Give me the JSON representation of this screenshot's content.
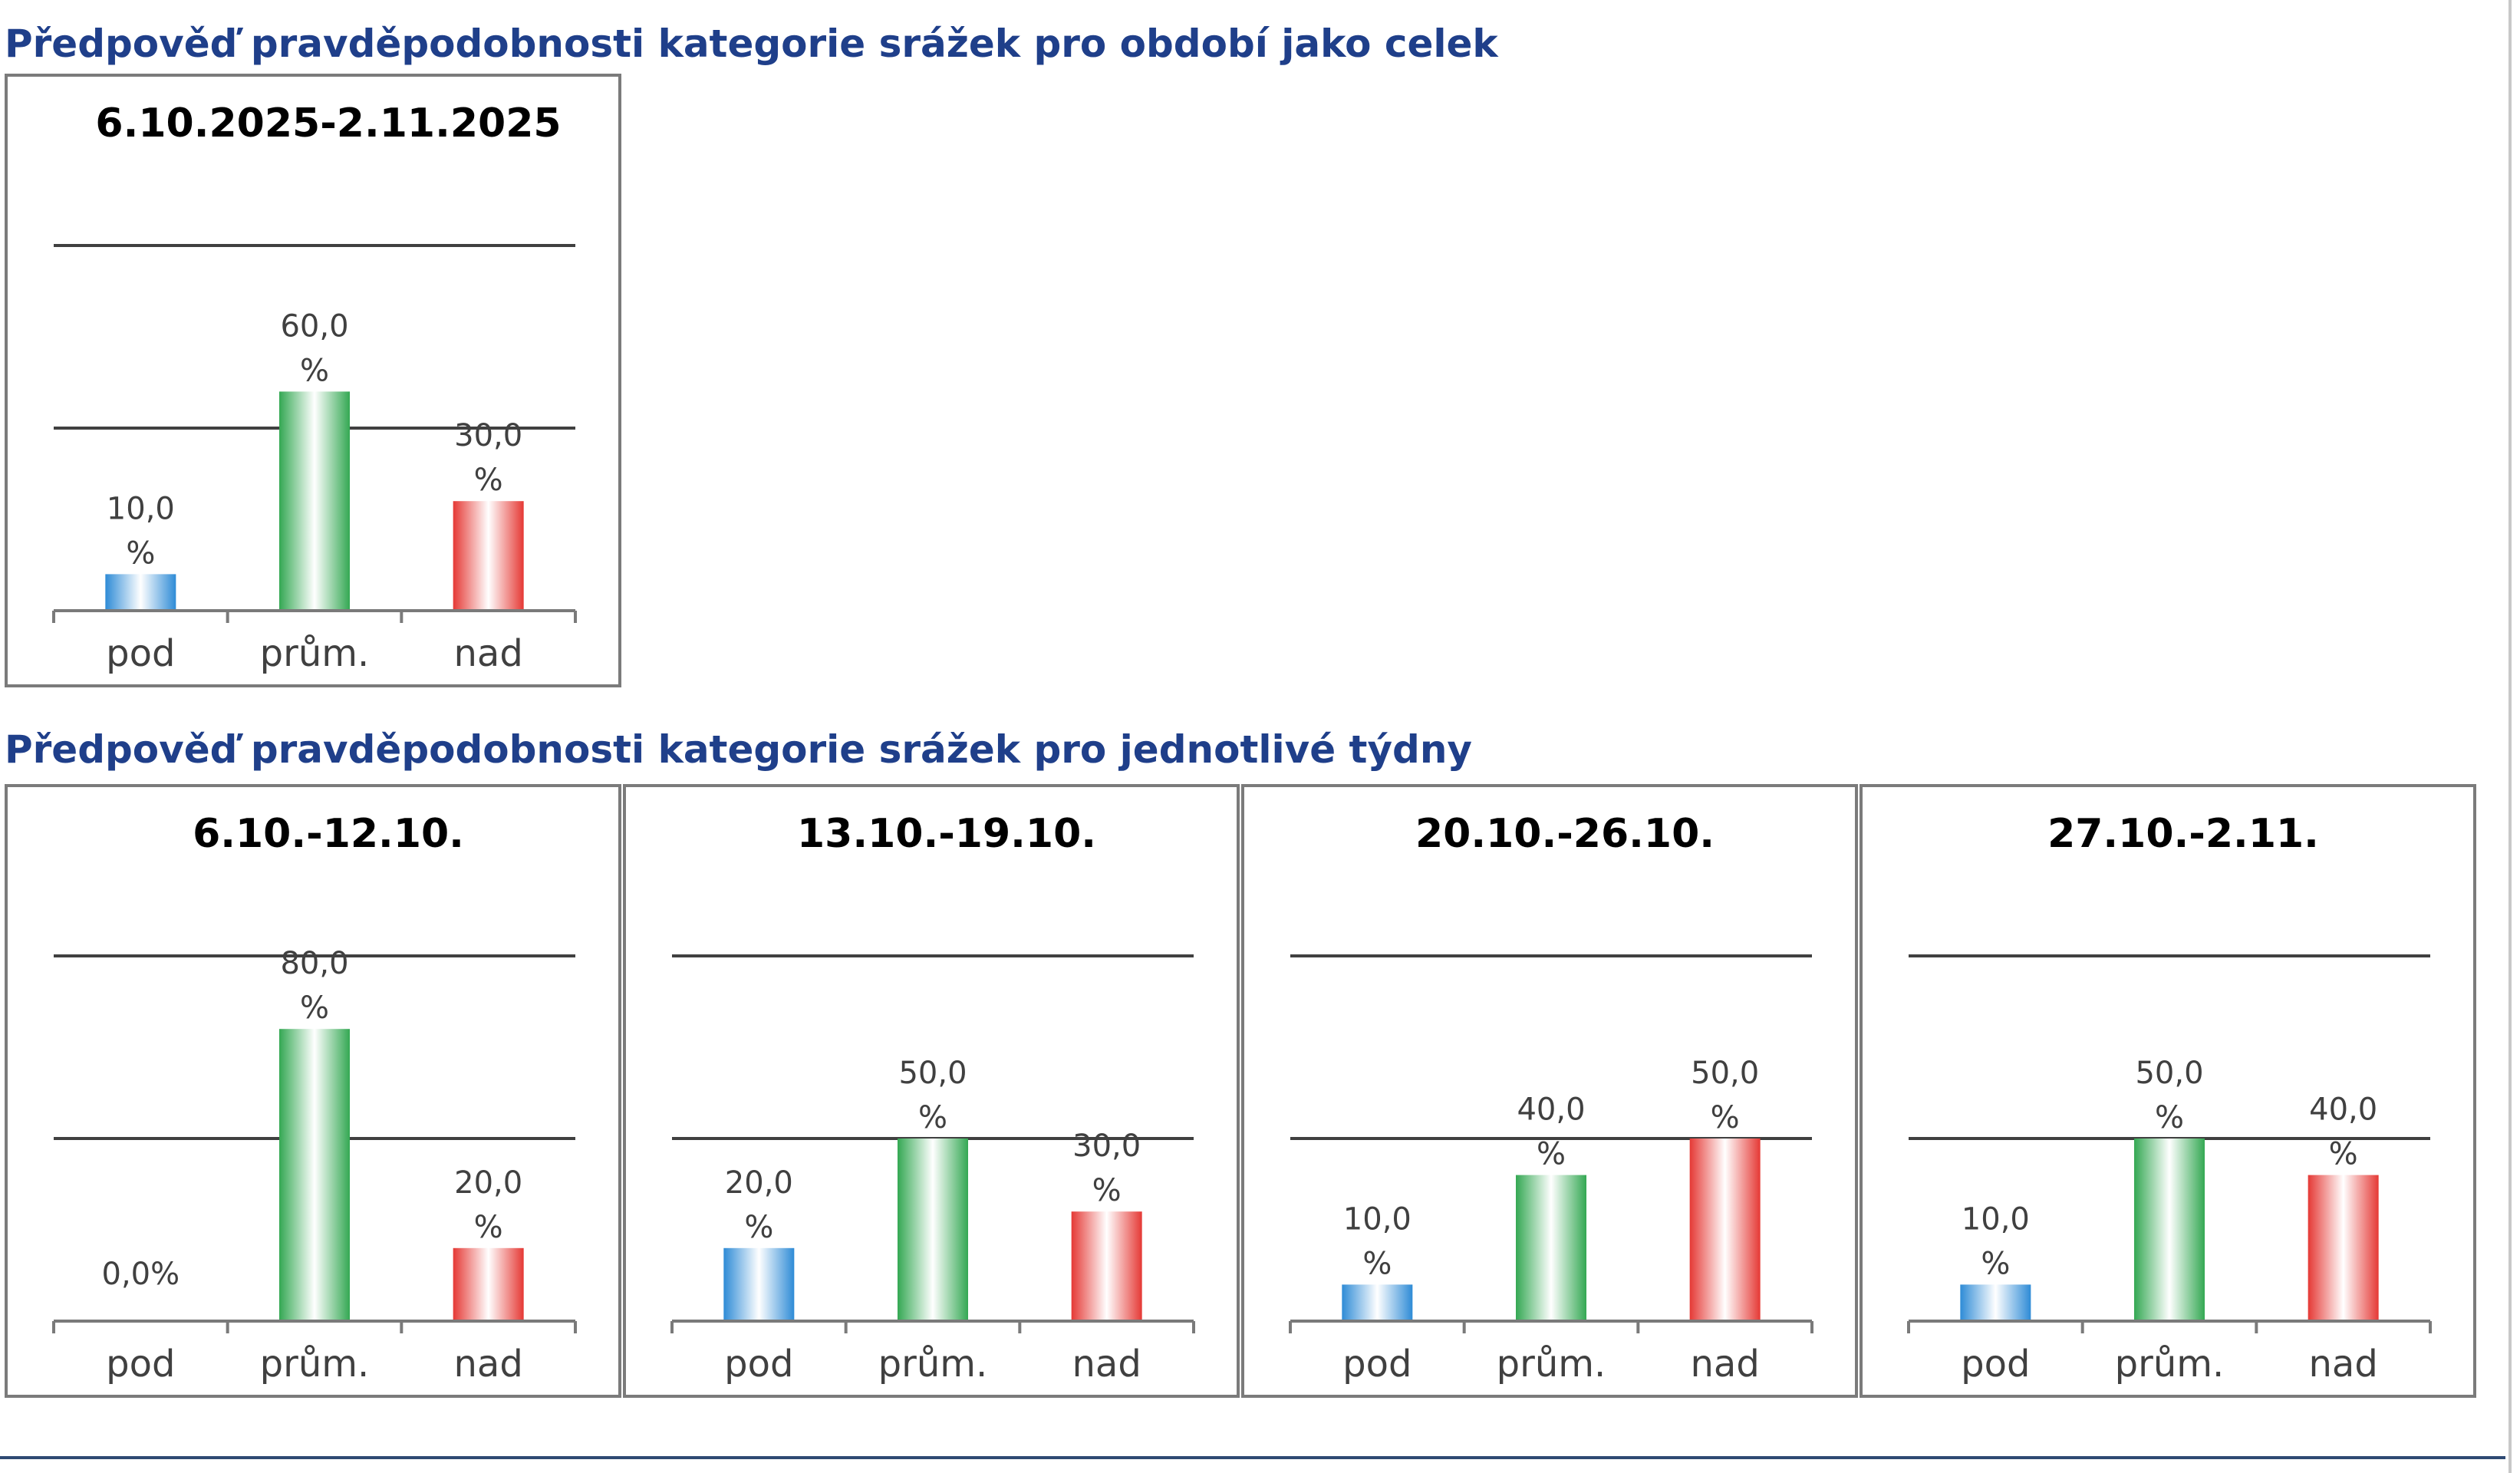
{
  "sections": {
    "period_title": "Předpověď pravděpodobnosti kategorie srážek pro období jako celek",
    "weeks_title": "Předpověď pravděpodobnosti kategorie srážek pro jednotlivé týdny"
  },
  "colors": {
    "title": "#1f3f8a",
    "pod": "#2e8bd6",
    "prum": "#34a853",
    "nad": "#e53935",
    "gridline": "#404040",
    "border": "#7b7b7b"
  },
  "chart_data": [
    {
      "type": "bar",
      "title": "6.10.2025-2.11.2025",
      "categories": [
        "pod",
        "prům.",
        "nad"
      ],
      "values": [
        10.0,
        60.0,
        30.0
      ],
      "labels": [
        "10,0 %",
        "60,0 %",
        "30,0 %"
      ],
      "ylim": [
        0,
        100
      ],
      "gridlines": [
        50,
        100
      ],
      "xlabel": "",
      "ylabel": "",
      "grid": true,
      "legend": "none"
    },
    {
      "type": "bar",
      "title": "6.10.-12.10.",
      "categories": [
        "pod",
        "prům.",
        "nad"
      ],
      "values": [
        0.0,
        80.0,
        20.0
      ],
      "labels": [
        "0,0%",
        "80,0 %",
        "20,0 %"
      ],
      "ylim": [
        0,
        100
      ],
      "gridlines": [
        50,
        100
      ],
      "xlabel": "",
      "ylabel": "",
      "grid": true,
      "legend": "none"
    },
    {
      "type": "bar",
      "title": "13.10.-19.10.",
      "categories": [
        "pod",
        "prům.",
        "nad"
      ],
      "values": [
        20.0,
        50.0,
        30.0
      ],
      "labels": [
        "20,0 %",
        "50,0 %",
        "30,0 %"
      ],
      "ylim": [
        0,
        100
      ],
      "gridlines": [
        50,
        100
      ],
      "xlabel": "",
      "ylabel": "",
      "grid": true,
      "legend": "none"
    },
    {
      "type": "bar",
      "title": "20.10.-26.10.",
      "categories": [
        "pod",
        "prům.",
        "nad"
      ],
      "values": [
        10.0,
        40.0,
        50.0
      ],
      "labels": [
        "10,0 %",
        "40,0 %",
        "50,0 %"
      ],
      "ylim": [
        0,
        100
      ],
      "gridlines": [
        50,
        100
      ],
      "xlabel": "",
      "ylabel": "",
      "grid": true,
      "legend": "none"
    },
    {
      "type": "bar",
      "title": "27.10.-2.11.",
      "categories": [
        "pod",
        "prům.",
        "nad"
      ],
      "values": [
        10.0,
        50.0,
        40.0
      ],
      "labels": [
        "10,0 %",
        "50,0 %",
        "40,0 %"
      ],
      "ylim": [
        0,
        100
      ],
      "gridlines": [
        50,
        100
      ],
      "xlabel": "",
      "ylabel": "",
      "grid": true,
      "legend": "none"
    }
  ]
}
